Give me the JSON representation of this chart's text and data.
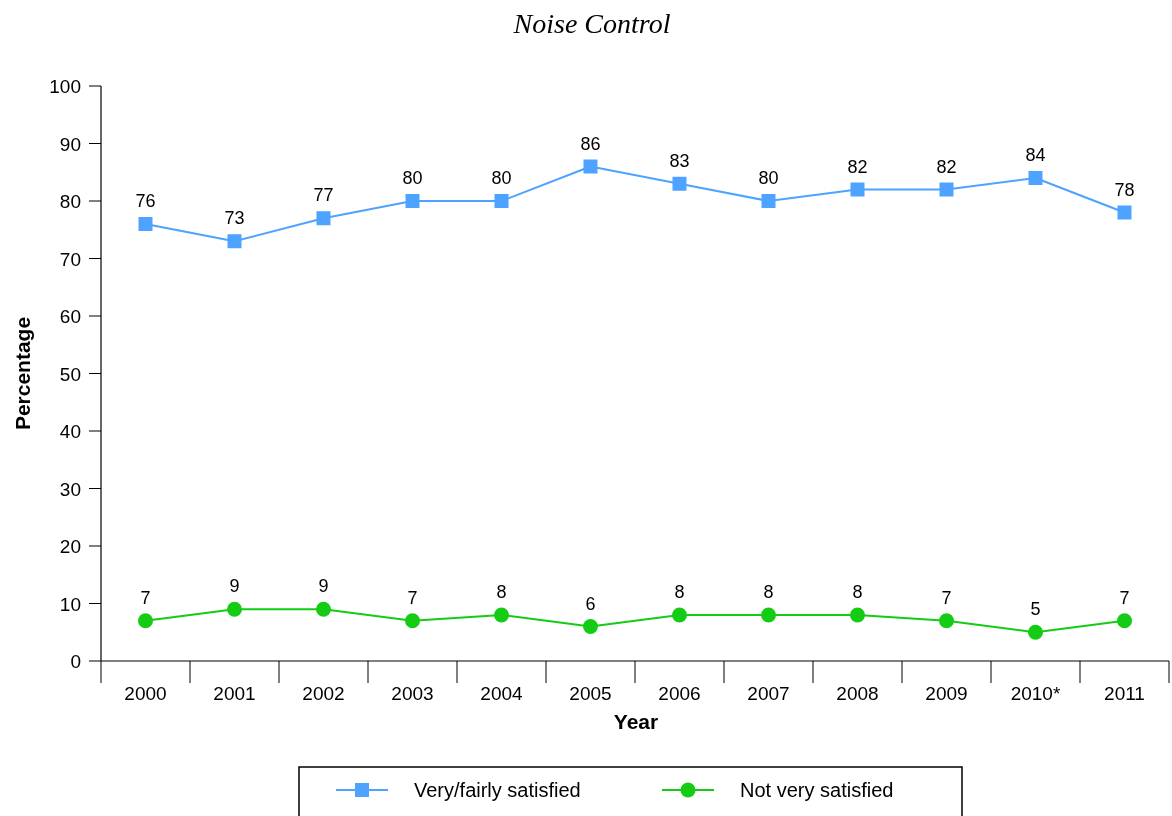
{
  "chart_data": {
    "type": "line",
    "title": "Noise Control",
    "xlabel": "Year",
    "ylabel": "Percentage",
    "categories": [
      "2000",
      "2001",
      "2002",
      "2003",
      "2004",
      "2005",
      "2006",
      "2007",
      "2008",
      "2009",
      "2010*",
      "2011"
    ],
    "series": [
      {
        "name": "Very/fairly satisfied",
        "color": "#4da3ff",
        "marker": "square",
        "values": [
          76,
          73,
          77,
          80,
          80,
          86,
          83,
          80,
          82,
          82,
          84,
          78
        ]
      },
      {
        "name": "Not very satisfied",
        "color": "#14cc14",
        "marker": "circle",
        "values": [
          7,
          9,
          9,
          7,
          8,
          6,
          8,
          8,
          8,
          7,
          5,
          7
        ]
      }
    ],
    "ylim": [
      0,
      100
    ],
    "yticks": [
      0,
      10,
      20,
      30,
      40,
      50,
      60,
      70,
      80,
      90,
      100
    ],
    "data_labels": true,
    "legend": "bottom",
    "grid": false
  }
}
